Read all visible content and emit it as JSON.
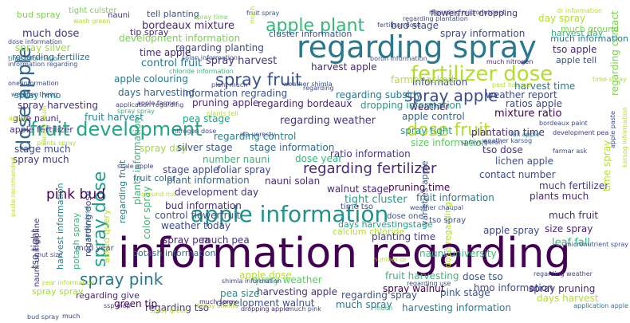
{
  "words": [
    {
      "text": "information regarding",
      "color": "#440154"
    },
    {
      "text": "regarding spray",
      "color": "#2a788e"
    },
    {
      "text": "apple information",
      "color": "#21918c"
    },
    {
      "text": "fertilizer dose",
      "color": "#b5de2b"
    },
    {
      "text": "fruit development",
      "color": "#22a884"
    },
    {
      "text": "apple plant",
      "color": "#35b779"
    },
    {
      "text": "spray fruit",
      "color": "#3b528b"
    },
    {
      "text": "dose apple",
      "color": "#31688e"
    },
    {
      "text": "dose fruit",
      "color": "#b5de2b"
    },
    {
      "text": "spray apple",
      "color": "#3e4989"
    },
    {
      "text": "regarding fertilizer",
      "color": "#482878"
    },
    {
      "text": "spray pink",
      "color": "#2a788e"
    },
    {
      "text": "spray dose",
      "color": "#1f9e89"
    },
    {
      "text": "pink bud",
      "color": "#440154"
    },
    {
      "text": "much dose",
      "color": "#46327e"
    },
    {
      "text": "regarding weather",
      "color": "#443983"
    },
    {
      "text": "bordeaux mixture",
      "color": "#482878"
    },
    {
      "text": "regarding planting",
      "color": "#3e4989"
    },
    {
      "text": "time apple",
      "color": "#482878"
    },
    {
      "text": "spray harvest",
      "color": "#46327e"
    },
    {
      "text": "harvest apple",
      "color": "#482878"
    },
    {
      "text": "control fruit",
      "color": "#2a788e"
    },
    {
      "text": "apple colouring",
      "color": "#2a788e"
    },
    {
      "text": "days harvesting",
      "color": "#31688e"
    },
    {
      "text": "information regrading",
      "color": "#3b528b"
    },
    {
      "text": "pruning apple",
      "color": "#482878"
    },
    {
      "text": "regarding bordeaux",
      "color": "#482878"
    },
    {
      "text": "weather report",
      "color": "#3e4989"
    },
    {
      "text": "mixture ratio",
      "color": "#440154"
    },
    {
      "text": "ratios apple",
      "color": "#3e4989"
    },
    {
      "text": "harvest time",
      "color": "#2a788e"
    },
    {
      "text": "fruit harvest",
      "color": "#26828e"
    },
    {
      "text": "pea stage",
      "color": "#1f9e89"
    },
    {
      "text": "regarding control",
      "color": "#26828e"
    },
    {
      "text": "apple control",
      "color": "#31688e"
    },
    {
      "text": "plantation time",
      "color": "#482878"
    },
    {
      "text": "size information",
      "color": "#5ec962"
    },
    {
      "text": "tso dose",
      "color": "#46327e"
    },
    {
      "text": "lichen apple",
      "color": "#3b528b"
    },
    {
      "text": "contact number",
      "color": "#3e4989"
    },
    {
      "text": "much fertilizer",
      "color": "#443983"
    },
    {
      "text": "plants much",
      "color": "#482878"
    },
    {
      "text": "spray tight",
      "color": "#1f9e89"
    },
    {
      "text": "ratio information",
      "color": "#46327e"
    },
    {
      "text": "stage much",
      "color": "#3e4989"
    },
    {
      "text": "spray much",
      "color": "#443983"
    },
    {
      "text": "spray day",
      "color": "#a0da39"
    },
    {
      "text": "silver stage",
      "color": "#3b528b"
    },
    {
      "text": "stage information",
      "color": "#31688e"
    },
    {
      "text": "number nauni",
      "color": "#35b779"
    },
    {
      "text": "dose year",
      "color": "#35b779"
    },
    {
      "text": "stage apple",
      "color": "#3e4989"
    },
    {
      "text": "foliar spray",
      "color": "#3e4989"
    },
    {
      "text": "plant information",
      "color": "#31688e"
    },
    {
      "text": "nauni solan",
      "color": "#482878"
    },
    {
      "text": "walnut stage",
      "color": "#482878"
    },
    {
      "text": "pruning time",
      "color": "#440154"
    },
    {
      "text": "fruit information",
      "color": "#2a788e"
    },
    {
      "text": "tight cluster",
      "color": "#1f9e89"
    },
    {
      "text": "development day",
      "color": "#46327e"
    },
    {
      "text": "bud information",
      "color": "#472d7b"
    },
    {
      "text": "control flowerfruit",
      "color": "#3b528b"
    },
    {
      "text": "weather today",
      "color": "#3e4989"
    },
    {
      "text": "spray pea",
      "color": "#482878"
    },
    {
      "text": "much pea",
      "color": "#46327e"
    },
    {
      "text": "much fruit",
      "color": "#482878"
    },
    {
      "text": "size spray",
      "color": "#482878"
    },
    {
      "text": "apple spray",
      "color": "#3e4989"
    },
    {
      "text": "planting time",
      "color": "#443983"
    },
    {
      "text": "leaf fall",
      "color": "#35b779"
    },
    {
      "text": "apple dose",
      "color": "#b5de2b"
    },
    {
      "text": "query weather",
      "color": "#5ec962"
    },
    {
      "text": "fruit harvesting",
      "color": "#35b779"
    },
    {
      "text": "dose tso",
      "color": "#3b528b"
    },
    {
      "text": "spray walnut",
      "color": "#440154"
    },
    {
      "text": "hmo information",
      "color": "#3e4989"
    },
    {
      "text": "spray pruning",
      "color": "#482878"
    },
    {
      "text": "pea size",
      "color": "#21918c"
    },
    {
      "text": "harvesting apple",
      "color": "#46327e"
    },
    {
      "text": "regarding spray",
      "color": "#3b528b"
    },
    {
      "text": "pink stage",
      "color": "#3b528b"
    },
    {
      "text": "days harvest",
      "color": "#b5de2b"
    },
    {
      "text": "development walnut",
      "color": "#3b528b"
    },
    {
      "text": "much spray",
      "color": "#2a788e"
    },
    {
      "text": "harvesting information",
      "color": "#2a788e"
    },
    {
      "text": "regarding tso",
      "color": "#46327e"
    },
    {
      "text": "green tip",
      "color": "#440154"
    },
    {
      "text": "bud spray",
      "color": "#7ad151"
    },
    {
      "text": "tell planting",
      "color": "#3b528b"
    },
    {
      "text": "flowerfruit dropping",
      "color": "#472d7b"
    },
    {
      "text": "day spray",
      "color": "#b5de2b"
    },
    {
      "text": "bud stage",
      "color": "#3e4989"
    },
    {
      "text": "cluster information",
      "color": "#3b528b"
    },
    {
      "text": "spray information",
      "color": "#3e4989"
    },
    {
      "text": "development information",
      "color": "#7ad151"
    },
    {
      "text": "tso apple",
      "color": "#482878"
    },
    {
      "text": "apple tell",
      "color": "#3b528b"
    },
    {
      "text": "spray silver",
      "color": "#a0da39"
    },
    {
      "text": "regarding fertilize",
      "color": "#31688e"
    },
    {
      "text": "spray hmo",
      "color": "#2a788e"
    },
    {
      "text": "spray harvesting",
      "color": "#46327e"
    },
    {
      "text": "information",
      "color": "#3e4989"
    },
    {
      "text": "dropping information",
      "color": "#1f9e89"
    },
    {
      "text": "regarding subsidy",
      "color": "#2a788e"
    },
    {
      "text": "farmer asked",
      "color": "#b5de2b"
    },
    {
      "text": "weather",
      "color": "#482878"
    },
    {
      "text": "fruit color",
      "color": "#31688e"
    },
    {
      "text": "time spray",
      "color": "#b5de2b"
    },
    {
      "text": "regarding contact",
      "color": "#7ad151"
    },
    {
      "text": "give nauni",
      "color": "#482878"
    },
    {
      "text": "apple fertilizer",
      "color": "#46327e"
    },
    {
      "text": "harvest day",
      "color": "#35b779"
    },
    {
      "text": "much information",
      "color": "#2a788e"
    },
    {
      "text": "much ground",
      "color": "#7ad151"
    },
    {
      "text": "color spray",
      "color": "#35b779"
    },
    {
      "text": "asked query",
      "color": "#b5de2b"
    },
    {
      "text": "potash information",
      "color": "#31688e"
    },
    {
      "text": "calcium chloride",
      "color": "#b5de2b"
    },
    {
      "text": "days harvestingstage",
      "color": "#1f9e89"
    },
    {
      "text": "nauni university",
      "color": "#35b779"
    },
    {
      "text": "regarding give",
      "color": "#482878"
    },
    {
      "text": "varieties apple",
      "color": "#3b528b"
    },
    {
      "text": "plants information",
      "color": "#35b779"
    },
    {
      "text": "regarding dose",
      "color": "#3e4989"
    },
    {
      "text": "tso tight",
      "color": "#3b528b"
    },
    {
      "text": "harvest information",
      "color": "#26828e"
    },
    {
      "text": "regarding fruit",
      "color": "#26828e"
    },
    {
      "text": "spray spray",
      "color": "#a0da39"
    },
    {
      "text": "shimla information",
      "color": "#3e4989"
    },
    {
      "text": "nauni unihelpline",
      "color": "#46327e"
    },
    {
      "text": "dose regarding",
      "color": "#b5de2b"
    },
    {
      "text": "potash spray",
      "color": "#35b779"
    },
    {
      "text": "dose one",
      "color": "#3b528b"
    },
    {
      "text": "tso spray",
      "color": "#3b528b"
    },
    {
      "text": "time tso",
      "color": "#3e4989"
    },
    {
      "text": "tight culster",
      "color": "#7ad151"
    },
    {
      "text": "wash green",
      "color": "#b5de2b"
    },
    {
      "text": "spray time",
      "color": "#7ad151"
    },
    {
      "text": "tip spray",
      "color": "#482878"
    },
    {
      "text": "regarding micronutrient",
      "color": "#3e4989"
    },
    {
      "text": "fruit spray",
      "color": "#3b528b"
    },
    {
      "text": "regarding plantation",
      "color": "#3e4989"
    },
    {
      "text": "dr information",
      "color": "#b5de2b"
    },
    {
      "text": "fertiliser dose",
      "color": "#3e4989"
    },
    {
      "text": "dose information",
      "color": "#3e4989"
    },
    {
      "text": "time information",
      "color": "#2a788e"
    },
    {
      "text": "information regarding",
      "color": "#3b528b"
    },
    {
      "text": "solan information",
      "color": "#3b528b"
    },
    {
      "text": "boron information",
      "color": "#3b528b"
    },
    {
      "text": "much nitrogen",
      "color": "#482878"
    },
    {
      "text": "chloride information",
      "color": "#35b779"
    },
    {
      "text": "one information",
      "color": "#3e4989"
    },
    {
      "text": "weather shimla",
      "color": "#3b528b"
    },
    {
      "text": "plant much",
      "color": "#3e4989"
    },
    {
      "text": "nitrogen dose",
      "color": "#3e4989"
    },
    {
      "text": "ola veresty",
      "color": "#3b528b"
    },
    {
      "text": "weather karsog",
      "color": "#3b528b"
    },
    {
      "text": "apple farmer",
      "color": "#482878"
    },
    {
      "text": "weather theog",
      "color": "#31688e"
    },
    {
      "text": "sprays boron",
      "color": "#3e4989"
    },
    {
      "text": "fall apple",
      "color": "#2a788e"
    },
    {
      "text": "bordeaux paint",
      "color": "#3e4989"
    },
    {
      "text": "pest harvest",
      "color": "#b5de2b"
    },
    {
      "text": "development pea",
      "color": "#46327e"
    },
    {
      "text": "farmar ask",
      "color": "#3e4989"
    },
    {
      "text": "apple paste",
      "color": "#3e4989"
    },
    {
      "text": "micronutrient spray",
      "color": "#3b528b"
    },
    {
      "text": "application apple",
      "color": "#2a788e"
    },
    {
      "text": "regarding weather",
      "color": "#3e4989"
    },
    {
      "text": "year information",
      "color": "#b5de2b"
    },
    {
      "text": "regarding use",
      "color": "#3e4989"
    },
    {
      "text": "number dr",
      "color": "#b5de2b"
    },
    {
      "text": "karsog information",
      "color": "#b5de2b"
    },
    {
      "text": "today shimla",
      "color": "#b5de2b"
    },
    {
      "text": "dropping apple",
      "color": "#482878"
    },
    {
      "text": "much pink",
      "color": "#3e4989"
    },
    {
      "text": "much spray",
      "color": "#482878"
    },
    {
      "text": "scale apple",
      "color": "#3e4989"
    },
    {
      "text": "plants spray",
      "color": "#b5de2b"
    },
    {
      "text": "ground nut",
      "color": "#b5de2b"
    },
    {
      "text": "weather chaupal",
      "color": "#3b528b"
    },
    {
      "text": "nut size",
      "color": "#3e4989"
    },
    {
      "text": "paste recomended",
      "color": "#b5de2b"
    },
    {
      "text": "variety plum",
      "color": "#b5de2b"
    },
    {
      "text": "time spray",
      "color": "#b5de2b"
    },
    {
      "text": "mop year",
      "color": "#3e4989"
    },
    {
      "text": "nauni",
      "color": "#46327e"
    },
    {
      "text": "much",
      "color": "#b5de2b"
    },
    {
      "text": "application regarding",
      "color": "#3e4989"
    },
    {
      "text": "much",
      "color": "#46327e"
    },
    {
      "text": "spray green",
      "color": "#b5de2b"
    },
    {
      "text": "ssp mop",
      "color": "#3e4989"
    },
    {
      "text": "plants tell",
      "color": "#b5de2b"
    },
    {
      "text": "apple",
      "color": "#b5de2b"
    },
    {
      "text": "spray spray",
      "color": "#35b779"
    },
    {
      "text": "regarding",
      "color": "#3e4989"
    },
    {
      "text": "much",
      "color": "#35b779"
    },
    {
      "text": "bud spray",
      "color": "#3b528b"
    },
    {
      "text": "spray dose",
      "color": "#2a788e"
    }
  ]
}
